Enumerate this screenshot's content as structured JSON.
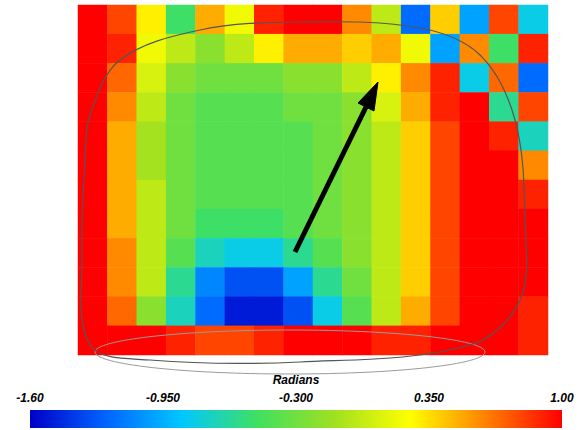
{
  "chart_data": {
    "type": "heatmap",
    "tick_labels": false,
    "cells": [
      [
        1.0,
        0.8,
        0.3,
        -0.5,
        0.5,
        0.2,
        0.9,
        1.0,
        1.0,
        0.6,
        0.0,
        -1.2,
        0.4,
        -1.0,
        0.8,
        -0.8
      ],
      [
        1.0,
        0.9,
        0.2,
        0.0,
        -0.2,
        0.0,
        0.3,
        0.5,
        0.5,
        0.4,
        0.5,
        0.2,
        -1.0,
        0.6,
        -0.5,
        0.9
      ],
      [
        1.0,
        0.7,
        0.1,
        -0.2,
        -0.3,
        -0.3,
        -0.3,
        -0.2,
        -0.2,
        0.0,
        0.3,
        0.6,
        0.9,
        -0.8,
        0.7,
        -1.2
      ],
      [
        1.0,
        0.6,
        0.0,
        -0.3,
        -0.4,
        -0.4,
        -0.4,
        -0.3,
        -0.3,
        -0.2,
        0.1,
        0.5,
        0.9,
        1.0,
        -0.6,
        0.8
      ],
      [
        1.0,
        0.5,
        -0.1,
        -0.3,
        -0.4,
        -0.4,
        -0.4,
        -0.4,
        -0.3,
        -0.2,
        0.0,
        0.4,
        0.8,
        1.0,
        0.9,
        -0.7
      ],
      [
        1.0,
        0.5,
        -0.1,
        -0.3,
        -0.4,
        -0.4,
        -0.4,
        -0.4,
        -0.3,
        -0.2,
        0.0,
        0.4,
        0.8,
        1.0,
        1.0,
        0.6
      ],
      [
        1.0,
        0.5,
        0.0,
        -0.3,
        -0.4,
        -0.4,
        -0.4,
        -0.4,
        -0.3,
        -0.2,
        0.0,
        0.4,
        0.8,
        1.0,
        1.0,
        0.9
      ],
      [
        1.0,
        0.5,
        0.0,
        -0.3,
        -0.5,
        -0.5,
        -0.5,
        -0.4,
        -0.3,
        -0.2,
        0.0,
        0.4,
        0.8,
        1.0,
        1.0,
        1.0
      ],
      [
        1.0,
        0.6,
        0.0,
        -0.4,
        -0.7,
        -0.8,
        -0.8,
        -0.6,
        -0.4,
        -0.2,
        0.0,
        0.4,
        0.8,
        1.0,
        1.0,
        1.0
      ],
      [
        1.0,
        0.6,
        0.0,
        -0.6,
        -1.1,
        -1.3,
        -1.3,
        -1.0,
        -0.6,
        -0.3,
        0.0,
        0.4,
        0.8,
        1.0,
        1.0,
        1.0
      ],
      [
        1.0,
        0.7,
        -0.2,
        -0.7,
        -1.2,
        -1.5,
        -1.5,
        -1.3,
        -0.8,
        -0.4,
        0.0,
        0.5,
        0.8,
        1.0,
        1.0,
        0.9
      ],
      [
        1.0,
        1.0,
        1.0,
        0.9,
        0.8,
        0.8,
        0.9,
        1.0,
        1.0,
        1.0,
        0.9,
        0.9,
        1.0,
        1.0,
        1.0,
        0.9
      ]
    ],
    "colorbar": {
      "title": "Radians",
      "range": [
        -1.6,
        1.0
      ],
      "ticks": [
        {
          "value": -1.6,
          "label": "-1.60"
        },
        {
          "value": -0.95,
          "label": "-0.950"
        },
        {
          "value": -0.3,
          "label": "-0.300"
        },
        {
          "value": 0.35,
          "label": "0.350"
        },
        {
          "value": 1.0,
          "label": "1.00"
        }
      ]
    }
  }
}
